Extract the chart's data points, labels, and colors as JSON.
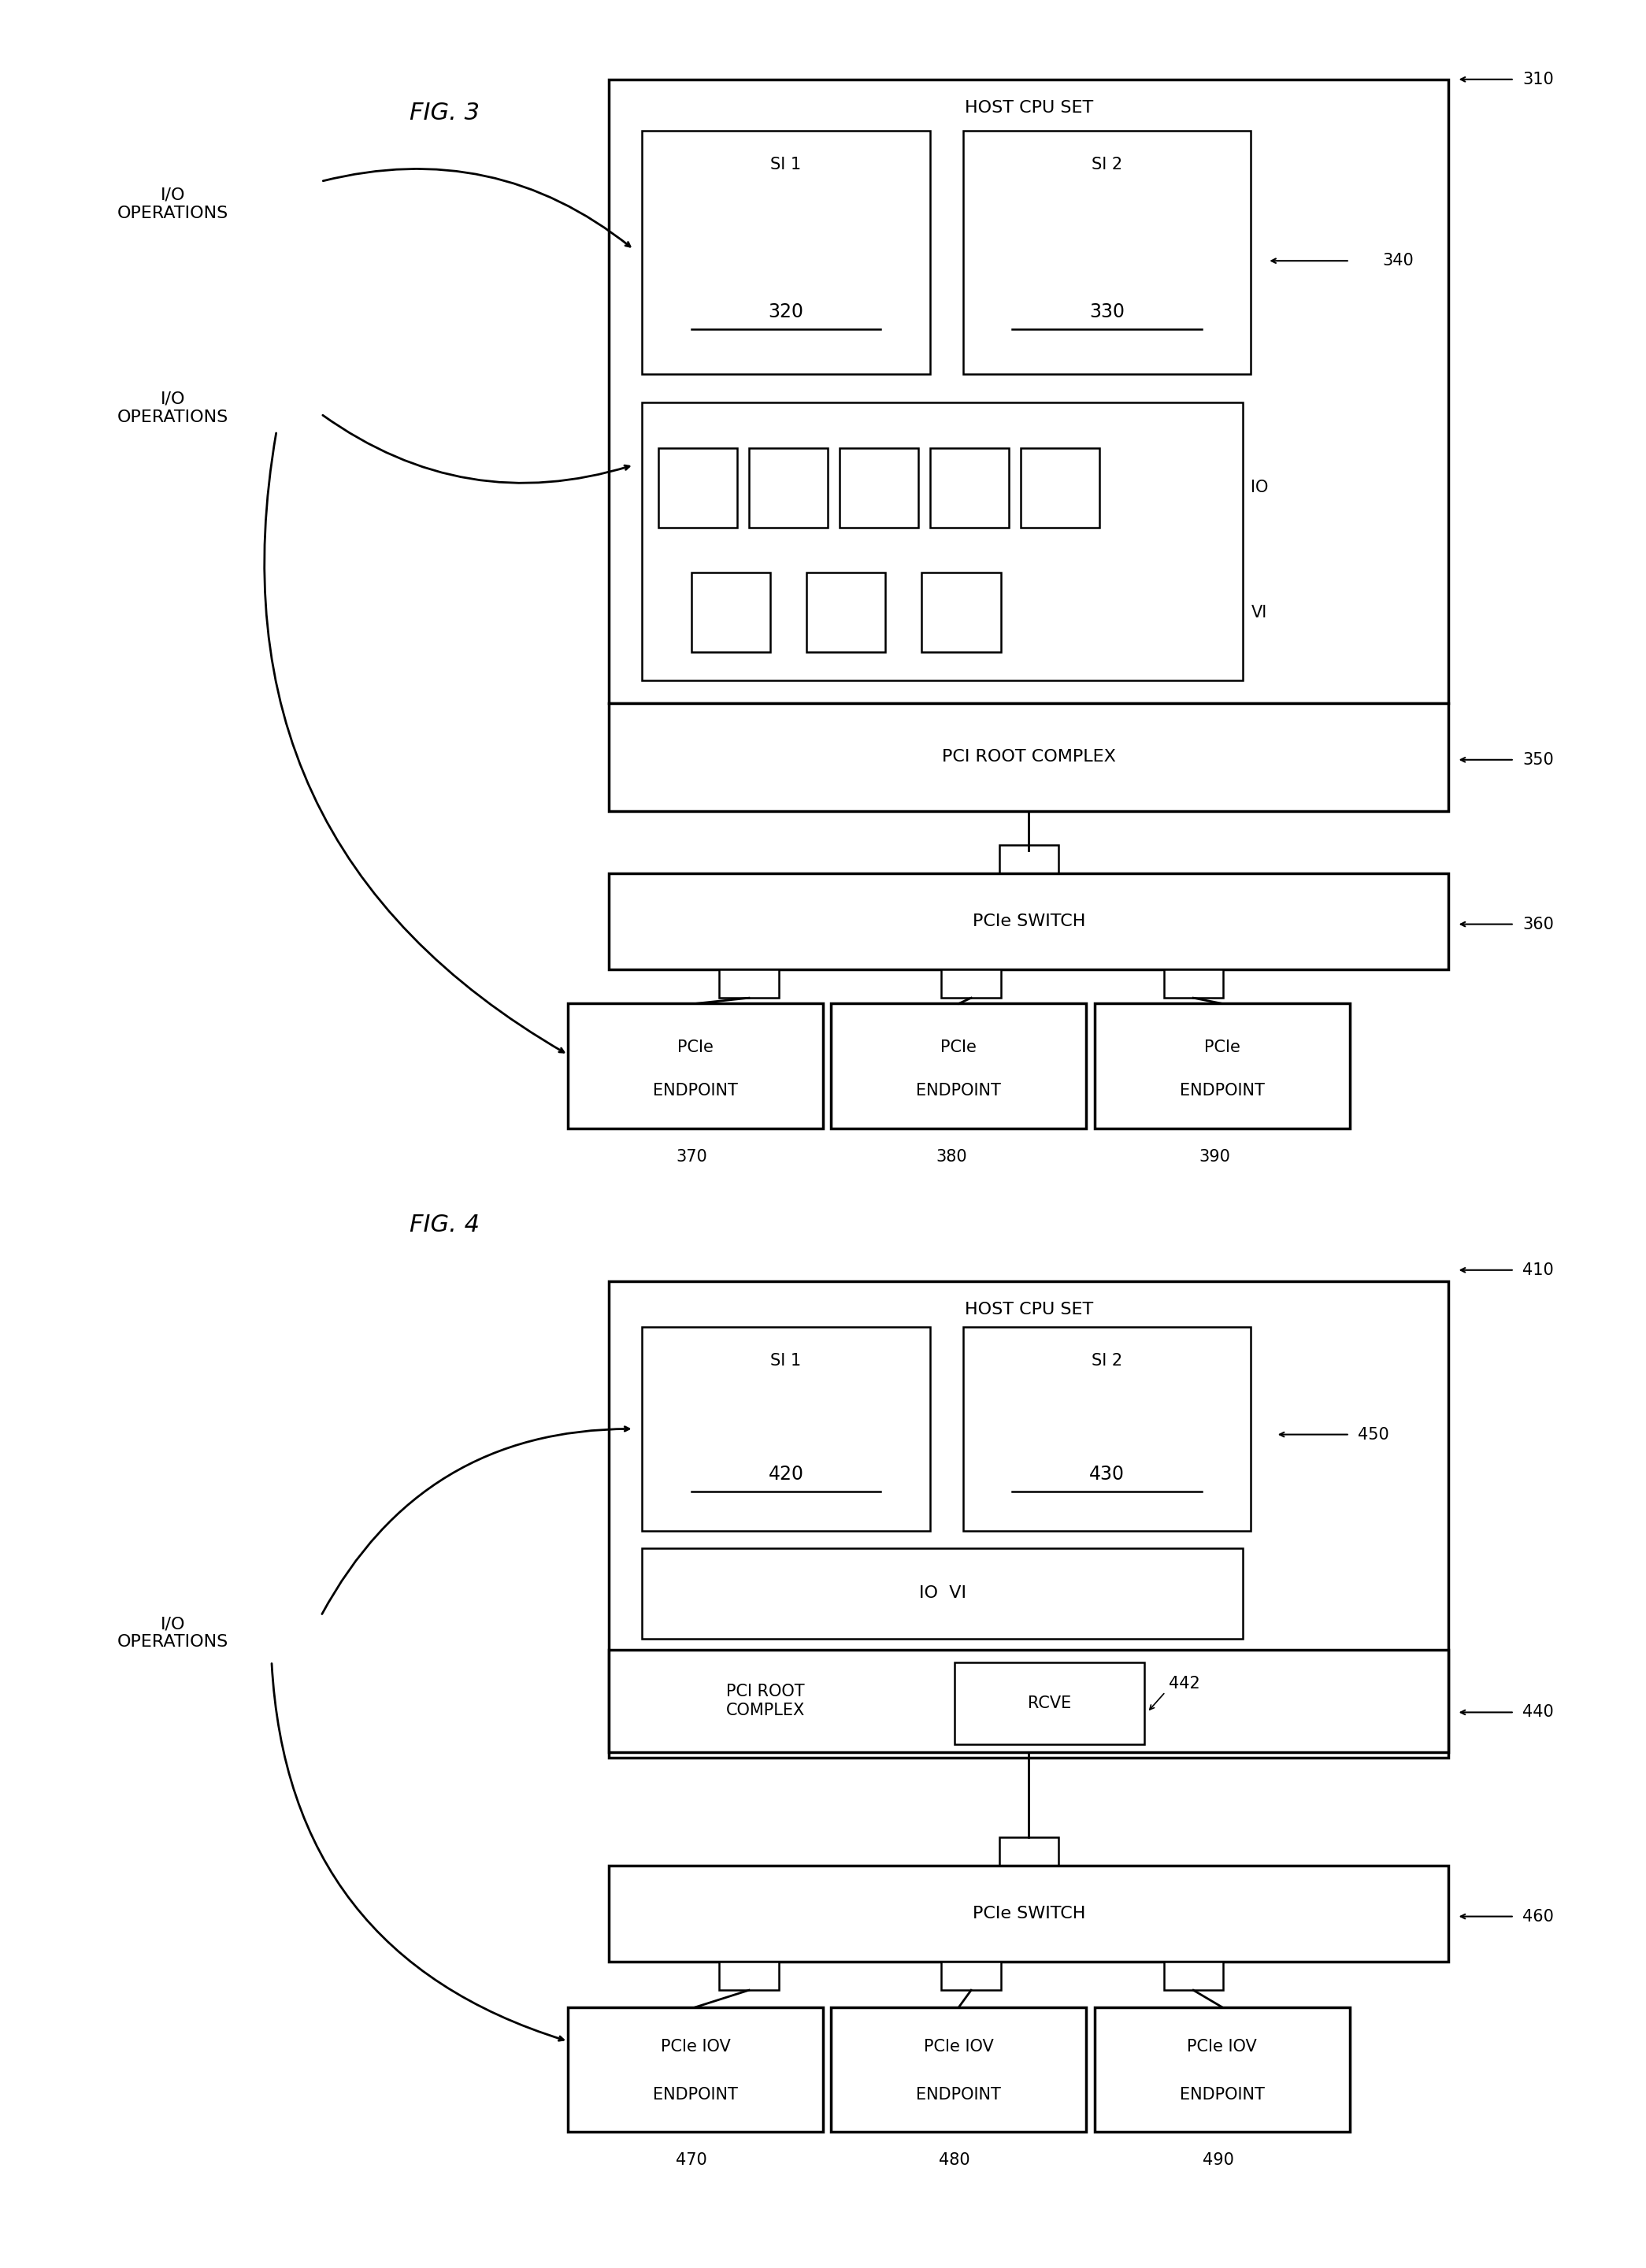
{
  "fig_width": 20.9,
  "fig_height": 28.8,
  "bg_color": "#ffffff",
  "fig3": {
    "title": "FIG. 3",
    "host_cpu_set_label": "HOST CPU SET",
    "si1_label": "SI 1",
    "si1_num": "320",
    "si2_label": "SI 2",
    "si2_num": "330",
    "ref_310": "310",
    "ref_340": "340",
    "ref_350": "350",
    "ref_360": "360",
    "io_label": "IO",
    "vi_label": "VI",
    "pci_root_label": "PCI ROOT COMPLEX",
    "pcie_switch_label": "PCIe SWITCH",
    "endpoint_labels": [
      [
        "PCIe",
        "ENDPOINT"
      ],
      [
        "PCIe",
        "ENDPOINT"
      ],
      [
        "PCIe",
        "ENDPOINT"
      ]
    ],
    "endpoint_refs": [
      "370",
      "380",
      "390"
    ],
    "io_ops_label1": "I/O\nOPERATIONS",
    "io_ops_label2": "I/O\nOPERATIONS"
  },
  "fig4": {
    "title": "FIG. 4",
    "host_cpu_set_label": "HOST CPU SET",
    "si1_label": "SI 1",
    "si1_num": "420",
    "si2_label": "SI 2",
    "si2_num": "430",
    "ref_410": "410",
    "ref_450": "450",
    "ref_440": "440",
    "ref_442": "442",
    "ref_460": "460",
    "iovi_label": "IO  VI",
    "pci_root_label": "PCI ROOT\nCOMPLEX",
    "rcve_label": "RCVE",
    "pcie_switch_label": "PCIe SWITCH",
    "endpoint_labels": [
      [
        "PCIe IOV",
        "ENDPOINT"
      ],
      [
        "PCIe IOV",
        "ENDPOINT"
      ],
      [
        "PCIe IOV",
        "ENDPOINT"
      ]
    ],
    "endpoint_refs": [
      "470",
      "480",
      "490"
    ],
    "io_ops_label": "I/O\nOPERATIONS"
  }
}
